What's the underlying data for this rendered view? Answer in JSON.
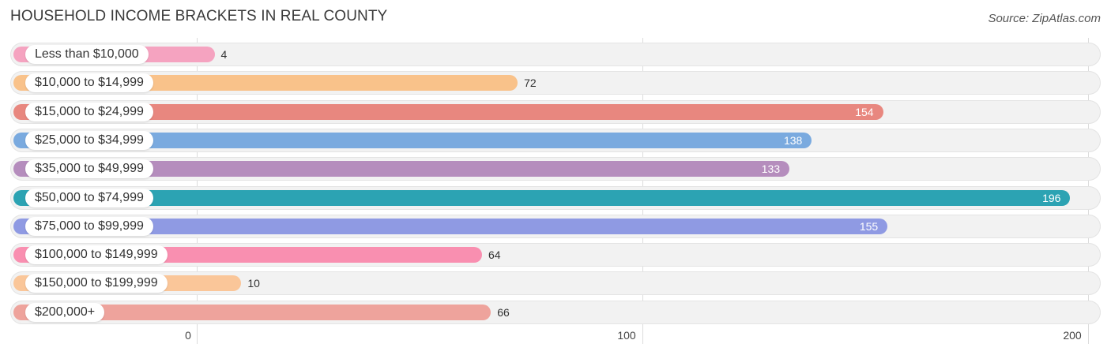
{
  "chart_data": {
    "type": "bar",
    "orientation": "horizontal",
    "title": "HOUSEHOLD INCOME BRACKETS IN REAL COUNTY",
    "source": "Source: ZipAtlas.com",
    "categories": [
      "Less than $10,000",
      "$10,000 to $14,999",
      "$15,000 to $24,999",
      "$25,000 to $34,999",
      "$35,000 to $49,999",
      "$50,000 to $74,999",
      "$75,000 to $99,999",
      "$100,000 to $149,999",
      "$150,000 to $199,999",
      "$200,000+"
    ],
    "values": [
      4,
      72,
      154,
      138,
      133,
      196,
      155,
      64,
      10,
      66
    ],
    "value_labels": [
      "4",
      "72",
      "154",
      "138",
      "133",
      "196",
      "155",
      "64",
      "10",
      "66"
    ],
    "colors": [
      "#f5a3c0",
      "#f9c28a",
      "#e8877f",
      "#7aaadf",
      "#b58dbd",
      "#2ca3b3",
      "#8f9ae3",
      "#f98fb0",
      "#fac699",
      "#eea39c"
    ],
    "xlim": [
      0,
      200
    ],
    "xticks": [
      0,
      100,
      200
    ],
    "xtick_labels": [
      "0",
      "100",
      "200"
    ],
    "grid": true
  }
}
